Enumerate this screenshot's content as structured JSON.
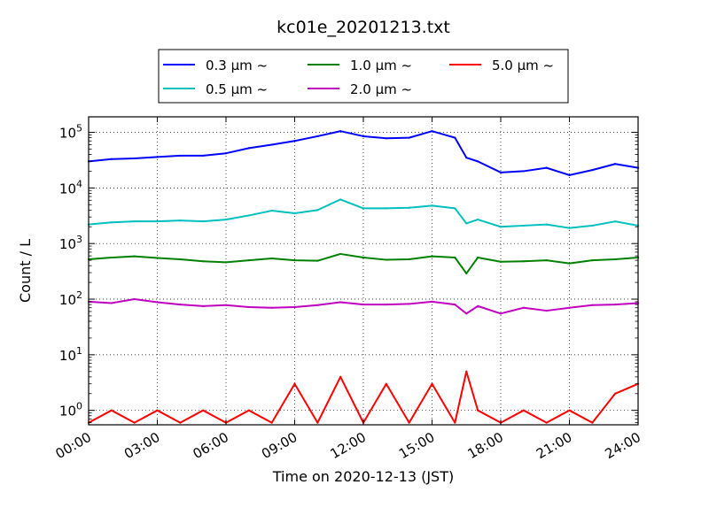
{
  "chart_data": {
    "type": "line",
    "title": "kc01e_20201213.txt",
    "xlabel": "Time on 2020-12-13 (JST)",
    "ylabel": "Count / L",
    "y_scale": "log",
    "xlim": [
      "00:00",
      "24:00"
    ],
    "ylim": [
      0.55,
      190000
    ],
    "grid": true,
    "legend_position": "top-center",
    "x_ticks": [
      "00:00",
      "03:00",
      "06:00",
      "09:00",
      "12:00",
      "15:00",
      "18:00",
      "21:00",
      "24:00"
    ],
    "y_ticks": [
      {
        "value": 1,
        "mantissa": "10",
        "exp": "0"
      },
      {
        "value": 10,
        "mantissa": "10",
        "exp": "1"
      },
      {
        "value": 100,
        "mantissa": "10",
        "exp": "2"
      },
      {
        "value": 1000,
        "mantissa": "10",
        "exp": "3"
      },
      {
        "value": 10000,
        "mantissa": "10",
        "exp": "4"
      },
      {
        "value": 100000,
        "mantissa": "10",
        "exp": "5"
      }
    ],
    "x": [
      "00:00",
      "01:00",
      "02:00",
      "03:00",
      "04:00",
      "05:00",
      "06:00",
      "07:00",
      "08:00",
      "09:00",
      "10:00",
      "11:00",
      "12:00",
      "13:00",
      "14:00",
      "15:00",
      "16:00",
      "16:30",
      "17:00",
      "18:00",
      "19:00",
      "20:00",
      "21:00",
      "22:00",
      "23:00",
      "24:00"
    ],
    "series": [
      {
        "name": "0.3 µm ~",
        "color": "#0000ff",
        "values": [
          30000,
          33000,
          34000,
          36000,
          38000,
          38000,
          42000,
          52000,
          60000,
          70000,
          85000,
          105000,
          85000,
          78000,
          80000,
          105000,
          80000,
          35000,
          30000,
          19000,
          20000,
          23000,
          17000,
          21000,
          27000,
          23000
        ]
      },
      {
        "name": "0.5 µm ~",
        "color": "#00bfbf",
        "values": [
          2200,
          2400,
          2500,
          2500,
          2600,
          2500,
          2700,
          3200,
          3900,
          3500,
          4000,
          6200,
          4300,
          4300,
          4400,
          4800,
          4300,
          2300,
          2700,
          2000,
          2100,
          2200,
          1900,
          2100,
          2500,
          2100
        ]
      },
      {
        "name": "1.0 µm ~",
        "color": "#008000",
        "values": [
          520,
          560,
          590,
          550,
          520,
          480,
          460,
          500,
          540,
          500,
          490,
          650,
          560,
          510,
          520,
          590,
          560,
          290,
          560,
          470,
          480,
          500,
          440,
          500,
          520,
          560
        ]
      },
      {
        "name": "2.0 µm ~",
        "color": "#bf00bf",
        "values": [
          90,
          85,
          100,
          88,
          80,
          75,
          78,
          72,
          70,
          72,
          78,
          88,
          80,
          80,
          82,
          90,
          80,
          55,
          75,
          55,
          70,
          62,
          70,
          78,
          80,
          85
        ]
      },
      {
        "name": "5.0 µm ~",
        "color": "#ff0000",
        "values": [
          0.6,
          1.0,
          0.6,
          1.0,
          0.6,
          1.0,
          0.6,
          1.0,
          0.6,
          3.0,
          0.6,
          4.0,
          0.6,
          3.0,
          0.6,
          3.0,
          0.6,
          5.0,
          1.0,
          0.6,
          1.0,
          0.6,
          1.0,
          0.6,
          2.0,
          3.0
        ]
      }
    ]
  }
}
